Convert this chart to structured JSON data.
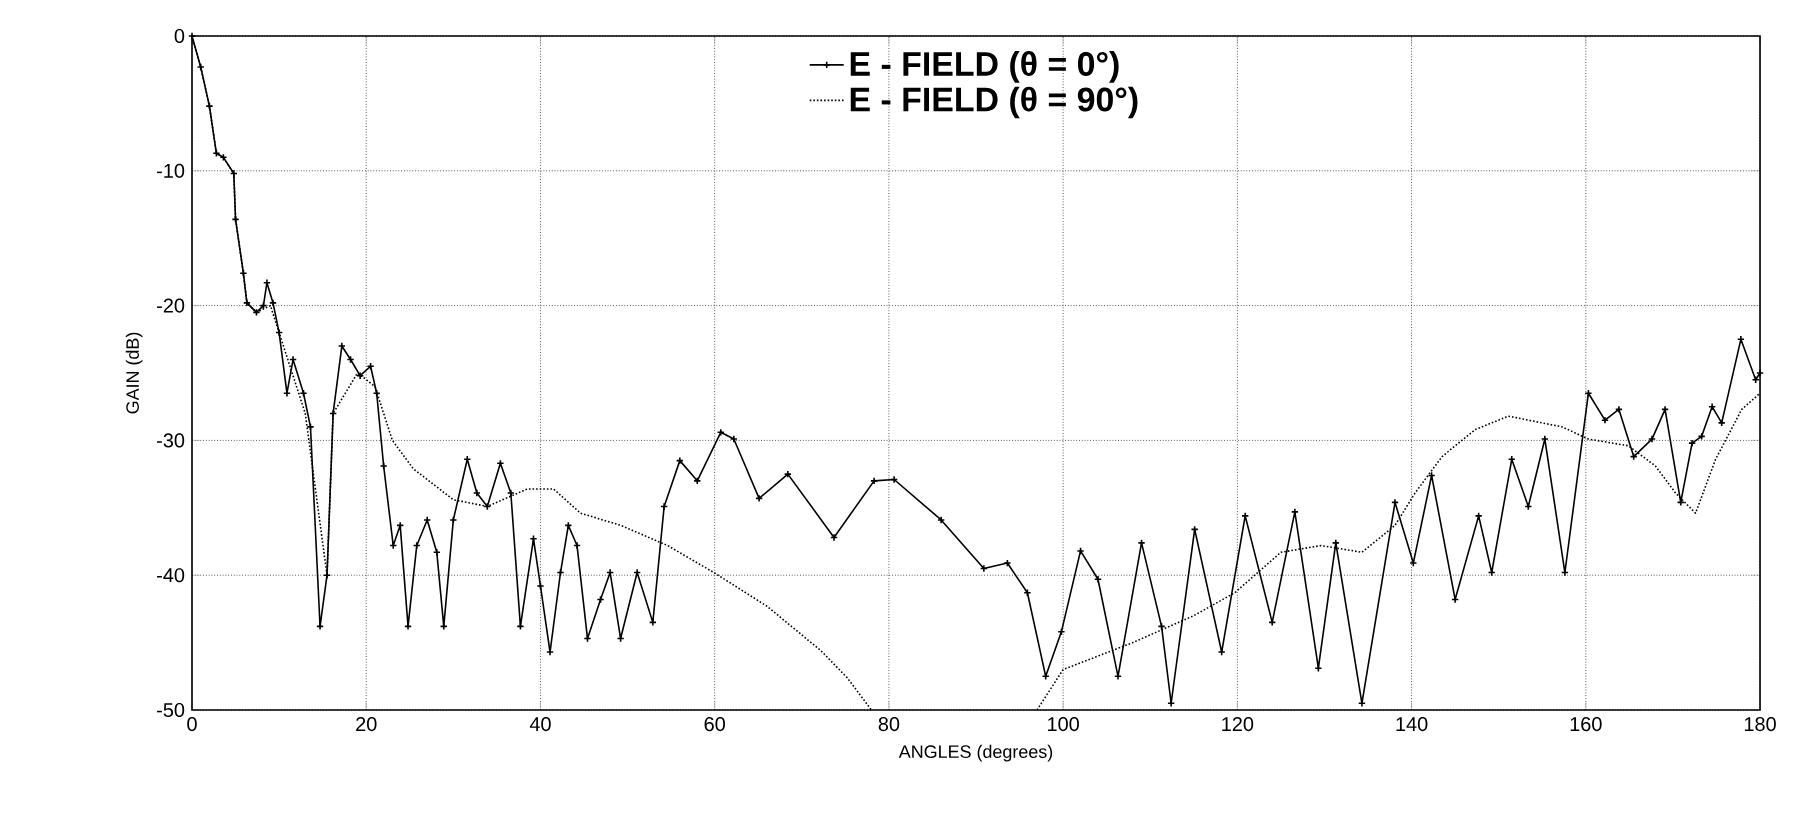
{
  "chart_data": {
    "type": "line",
    "xlabel": "ANGLES (degrees)",
    "ylabel": "GAIN (dB)",
    "xlim": [
      0,
      180
    ],
    "ylim": [
      -50,
      0
    ],
    "xticks": [
      0,
      20,
      40,
      60,
      80,
      100,
      120,
      140,
      160,
      180
    ],
    "yticks": [
      -50,
      -40,
      -30,
      -20,
      -10,
      0
    ],
    "grid": true,
    "legend": "top",
    "series": [
      {
        "name": "E - FIELD (θ = 0°)",
        "color": "#000000",
        "line_style": "solid",
        "marker": "cross",
        "x": [
          0,
          1,
          2,
          2.8,
          3.6,
          4.8,
          5,
          5.9,
          6.3,
          7.4,
          8.2,
          8.6,
          9.3,
          10,
          10.9,
          11.6,
          12.8,
          13.6,
          14.7,
          15.5,
          16.2,
          17.2,
          18.2,
          19.3,
          20.5,
          21.2,
          22,
          23.1,
          23.9,
          24.8,
          25.8,
          27,
          28.1,
          28.9,
          30,
          31.6,
          32.7,
          33.9,
          35.4,
          36.6,
          37.7,
          39.2,
          40,
          41.1,
          42.3,
          43.2,
          44.2,
          45.4,
          46.9,
          48,
          49.2,
          51.1,
          52.9,
          54.2,
          56,
          58,
          60.7,
          62.2,
          65.1,
          68.4,
          73.7,
          78.3,
          80.6,
          86,
          90.9,
          93.6,
          95.9,
          98,
          99.8,
          102,
          104,
          106.3,
          109,
          111.3,
          112.4,
          115.1,
          118.2,
          120.9,
          124,
          126.6,
          129.3,
          131.3,
          134.3,
          138.1,
          140.2,
          142.3,
          145,
          147.7,
          149.2,
          151.5,
          153.4,
          155.3,
          157.6,
          160.3,
          162.2,
          163.8,
          165.5,
          167.6,
          169.1,
          170.9,
          172.2,
          173.3,
          174.5,
          175.6,
          177.8,
          179.5,
          180
        ],
        "values": [
          0,
          -2.3,
          -5.2,
          -8.7,
          -9,
          -10.2,
          -13.6,
          -17.6,
          -19.8,
          -20.5,
          -20,
          -18.3,
          -19.8,
          -22,
          -26.5,
          -24,
          -26.5,
          -29,
          -43.8,
          -40,
          -28,
          -23,
          -24,
          -25.2,
          -24.5,
          -26.5,
          -31.9,
          -37.8,
          -36.3,
          -43.8,
          -37.8,
          -35.9,
          -38.3,
          -43.8,
          -35.9,
          -31.4,
          -33.9,
          -34.9,
          -31.7,
          -33.9,
          -43.8,
          -37.3,
          -40.8,
          -45.7,
          -39.8,
          -36.3,
          -37.8,
          -44.7,
          -41.8,
          -39.8,
          -44.7,
          -39.8,
          -43.5,
          -34.9,
          -31.5,
          -33,
          -29.4,
          -29.9,
          -34.3,
          -32.5,
          -37.2,
          -33,
          -32.9,
          -35.9,
          -39.5,
          -39.1,
          -41.3,
          -47.5,
          -44.2,
          -38.2,
          -40.3,
          -47.5,
          -37.6,
          -43.8,
          -49.5,
          -36.6,
          -45.7,
          -35.6,
          -43.5,
          -35.3,
          -46.9,
          -37.6,
          -49.5,
          -34.6,
          -39.1,
          -32.6,
          -41.8,
          -35.6,
          -39.8,
          -31.4,
          -34.9,
          -29.9,
          -39.8,
          -26.5,
          -28.5,
          -27.7,
          -31.2,
          -29.9,
          -27.7,
          -34.6,
          -30.2,
          -29.7,
          -27.5,
          -28.7,
          -22.5,
          -25.5,
          -25
        ]
      },
      {
        "name": "E - FIELD (θ = 90°)",
        "color": "#000000",
        "line_style": "dotted",
        "marker": "none",
        "x": [
          0,
          1,
          2,
          2.8,
          3.6,
          4.8,
          5,
          5.9,
          6.3,
          7.4,
          9,
          11,
          13,
          15.5,
          16.2,
          19,
          21,
          23,
          25.4,
          30,
          33.9,
          38.5,
          41.5,
          44.6,
          49.2,
          54.6,
          59.9,
          66,
          72.2,
          75.2,
          78,
          90,
          97,
          100,
          108,
          115,
          119.7,
          125,
          129.6,
          134.3,
          138.1,
          140.4,
          143.5,
          147.3,
          151.1,
          157.3,
          160.3,
          164.9,
          168,
          170.3,
          172.6,
          174.9,
          177.9,
          180
        ],
        "values": [
          0,
          -2.3,
          -5.2,
          -8.7,
          -9,
          -10.2,
          -13.6,
          -17.6,
          -19.8,
          -20.5,
          -20,
          -24,
          -28,
          -40,
          -28,
          -25,
          -26,
          -30,
          -32.1,
          -34.4,
          -34.9,
          -33.6,
          -33.6,
          -35.4,
          -36.3,
          -37.8,
          -39.8,
          -42.3,
          -45.6,
          -47.6,
          -50,
          null,
          -50,
          -47,
          -45,
          -43,
          -41.3,
          -38.3,
          -37.8,
          -38.3,
          -36.3,
          -33.9,
          -31.2,
          -29.2,
          -28.2,
          -29,
          -29.9,
          -30.4,
          -31.9,
          -33.9,
          -35.4,
          -31.4,
          -27.7,
          -26.5
        ]
      }
    ]
  }
}
